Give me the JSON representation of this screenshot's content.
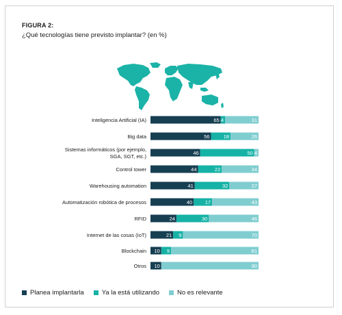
{
  "figure": {
    "label": "FIGURA 2:",
    "subtitle": "¿Qué tecnologías tiene previsto implantar? (en %)"
  },
  "colors": {
    "planea": "#173f52",
    "utilizando": "#16b2a6",
    "no_relevante": "#80cdd0",
    "map": "#1bb3a7"
  },
  "chart_data": {
    "type": "bar",
    "orientation": "horizontal",
    "stacked": true,
    "categories": [
      "Inteligencia Artificial (IA)",
      "Big data",
      "Sistemas informáticos (por ejemplo, SGA, SGT, etc.)",
      "Control tower",
      "Warehousing automation",
      "Automatización robótica de procesos",
      "RFID",
      "Internet de las cosas (IoT)",
      "Blockchain",
      "Otros"
    ],
    "category_lines": [
      [
        "Inteligencia Artificial (IA)"
      ],
      [
        "Big data"
      ],
      [
        "Sistemas informáticos (por ejemplo,",
        "SGA, SGT, etc.)"
      ],
      [
        "Control tower"
      ],
      [
        "Warehousing automation"
      ],
      [
        "Automatización robótica de procesos"
      ],
      [
        "RFID"
      ],
      [
        "Internet de las cosas (IoT)"
      ],
      [
        "Blockchain"
      ],
      [
        "Otros"
      ]
    ],
    "series": [
      {
        "name": "Planea implantarla",
        "values": [
          65,
          56,
          46,
          44,
          41,
          40,
          24,
          21,
          10,
          10
        ]
      },
      {
        "name": "Ya la está utilizando",
        "values": [
          4,
          18,
          50,
          22,
          32,
          17,
          30,
          9,
          9,
          0
        ]
      },
      {
        "name": "No es relevante",
        "values": [
          31,
          26,
          4,
          34,
          27,
          43,
          46,
          70,
          81,
          90
        ]
      }
    ],
    "data_labels": true,
    "legend_position": "bottom-left"
  }
}
